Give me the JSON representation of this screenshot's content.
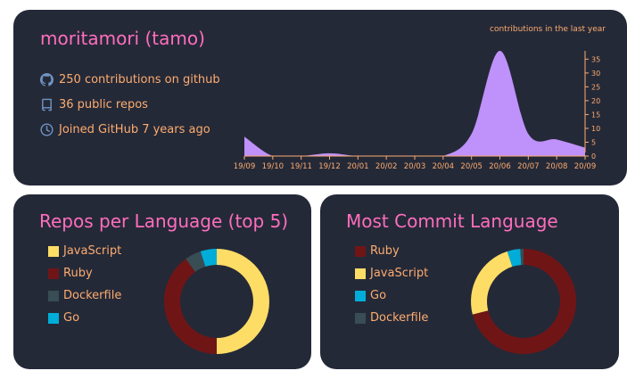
{
  "profile": {
    "title": "moritamori (tamo)",
    "contributions": "250 contributions on github",
    "repos": "36 public repos",
    "joined": "Joined GitHub 7 years ago"
  },
  "colors": {
    "card_bg": "#242938",
    "title": "#fe6ebd",
    "text": "#fdac6e",
    "icon": "#7193c2",
    "area": "#bf91fa"
  },
  "chart_data": [
    {
      "type": "area",
      "title": "contributions in the last year",
      "categories": [
        "19/09",
        "19/10",
        "19/11",
        "19/12",
        "20/01",
        "20/02",
        "20/03",
        "20/04",
        "20/05",
        "20/06",
        "20/07",
        "20/08",
        "20/09"
      ],
      "values": [
        7,
        0,
        0,
        1,
        0,
        0,
        0,
        0,
        8,
        38,
        8,
        6,
        3
      ],
      "ylim": [
        0,
        38
      ],
      "yticks": [
        "0",
        "5",
        "10",
        "15",
        "20",
        "25",
        "30",
        "35"
      ]
    },
    {
      "type": "pie",
      "title": "Repos per Language (top 5)",
      "slices": [
        {
          "name": "JavaScript",
          "value": 50,
          "color": "#fedd66"
        },
        {
          "name": "Ruby",
          "value": 40,
          "color": "#701516"
        },
        {
          "name": "Dockerfile",
          "value": 5,
          "color": "#384d54"
        },
        {
          "name": "Go",
          "value": 5,
          "color": "#00add8"
        }
      ]
    },
    {
      "type": "pie",
      "title": "Most Commit Language",
      "slices": [
        {
          "name": "Ruby",
          "value": 71,
          "color": "#701516"
        },
        {
          "name": "JavaScript",
          "value": 24,
          "color": "#fedd66"
        },
        {
          "name": "Go",
          "value": 4,
          "color": "#00add8"
        },
        {
          "name": "Dockerfile",
          "value": 1,
          "color": "#384d54"
        }
      ]
    }
  ]
}
